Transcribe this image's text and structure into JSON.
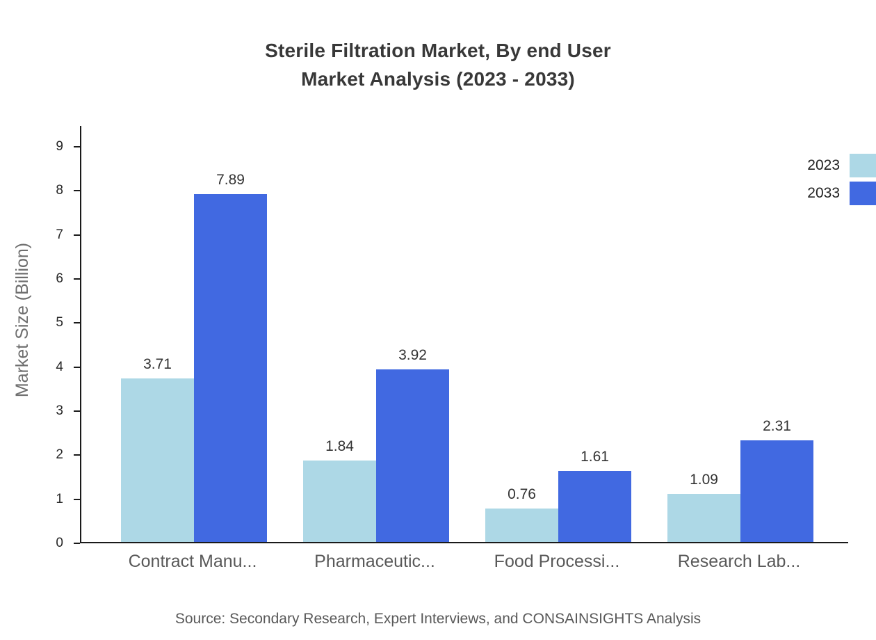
{
  "title": {
    "line1": "Sterile Filtration Market, By end User",
    "line2": "Market Analysis (2023 - 2033)"
  },
  "source": "Source: Secondary Research, Expert Interviews, and CONSAINSIGHTS Analysis",
  "chart_data": {
    "type": "bar",
    "title": "Sterile Filtration Market, By end User Market Analysis (2023 - 2033)",
    "ylabel": "Market Size (Billion)",
    "xlabel": "",
    "categories": [
      "Contract Manu...",
      "Pharmaceutic...",
      "Food Processi...",
      "Research Lab..."
    ],
    "series": [
      {
        "name": "2023",
        "color": "#add8e6",
        "values": [
          3.71,
          1.84,
          0.76,
          1.09
        ]
      },
      {
        "name": "2033",
        "color": "#4169e1",
        "values": [
          7.89,
          3.92,
          1.61,
          2.31
        ]
      }
    ],
    "yticks": [
      0,
      1,
      2,
      3,
      4,
      5,
      6,
      7,
      8,
      9
    ],
    "ylim": [
      0,
      9.47
    ],
    "grid": false,
    "legend_position": "top-right"
  }
}
